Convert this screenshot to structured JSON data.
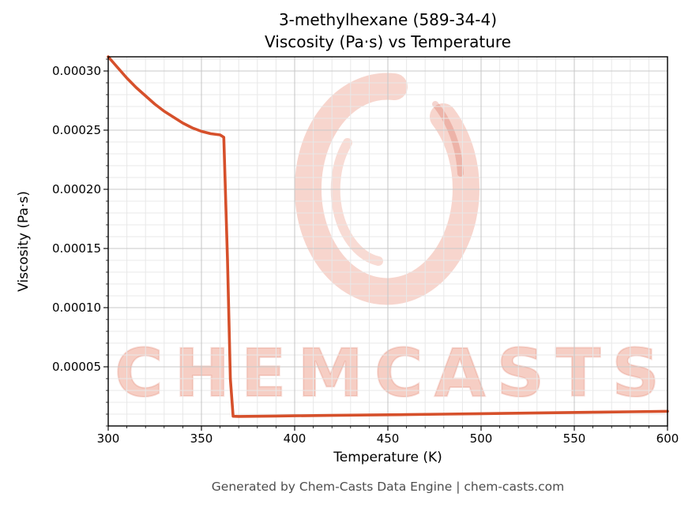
{
  "title": {
    "line1": "3-methylhexane (589-34-4)",
    "line2": "Viscosity (Pa·s) vs Temperature"
  },
  "watermark": {
    "text": "CHEMCASTS",
    "logo": "chemcasts-c-swirl-logo"
  },
  "footer": "Generated by Chem-Casts Data Engine | chem-casts.com",
  "colors": {
    "line": "#d6502b",
    "watermark": "#e85c3d",
    "grid_major": "#c9c9c9",
    "grid_minor": "#e8e8e8",
    "axis": "#000000",
    "footer_text": "#4d4d4d"
  },
  "chart_data": {
    "type": "line",
    "title": "3-methylhexane (589-34-4) Viscosity (Pa·s) vs Temperature",
    "title_lines": [
      "3-methylhexane (589-34-4)",
      "Viscosity (Pa·s) vs Temperature"
    ],
    "xlabel": "Temperature (K)",
    "ylabel": "Viscosity (Pa·s)",
    "xlim": [
      300,
      600
    ],
    "ylim": [
      0,
      0.000312
    ],
    "x_ticks": [
      300,
      350,
      400,
      450,
      500,
      550,
      600
    ],
    "x_tick_labels": [
      "300",
      "350",
      "400",
      "450",
      "500",
      "550",
      "600"
    ],
    "y_ticks": [
      5e-05,
      0.0001,
      0.00015,
      0.0002,
      0.00025,
      0.0003
    ],
    "y_tick_labels": [
      "0.00005",
      "0.00010",
      "0.00015",
      "0.00020",
      "0.00025",
      "0.00030"
    ],
    "x_minor_step": 10,
    "y_minor_step": 1e-05,
    "grid": true,
    "legend": "none",
    "series": [
      {
        "name": "viscosity",
        "x": [
          300,
          305,
          310,
          315,
          320,
          325,
          330,
          335,
          340,
          345,
          350,
          355,
          360,
          362,
          364,
          365.5,
          367,
          370,
          380,
          390,
          400,
          420,
          440,
          460,
          480,
          500,
          520,
          540,
          560,
          580,
          600
        ],
        "y": [
          0.000312,
          0.000303,
          0.000294,
          0.000286,
          0.000279,
          0.000272,
          0.000266,
          0.000261,
          0.000256,
          0.000252,
          0.000249,
          0.000247,
          0.000246,
          0.000244,
          0.00014,
          4e-05,
          8.2e-06,
          8.1e-06,
          8.2e-06,
          8.4e-06,
          8.6e-06,
          8.9e-06,
          9.3e-06,
          9.6e-06,
          1e-05,
          1.04e-05,
          1.08e-05,
          1.12e-05,
          1.16e-05,
          1.2e-05,
          1.24e-05
        ]
      }
    ]
  }
}
